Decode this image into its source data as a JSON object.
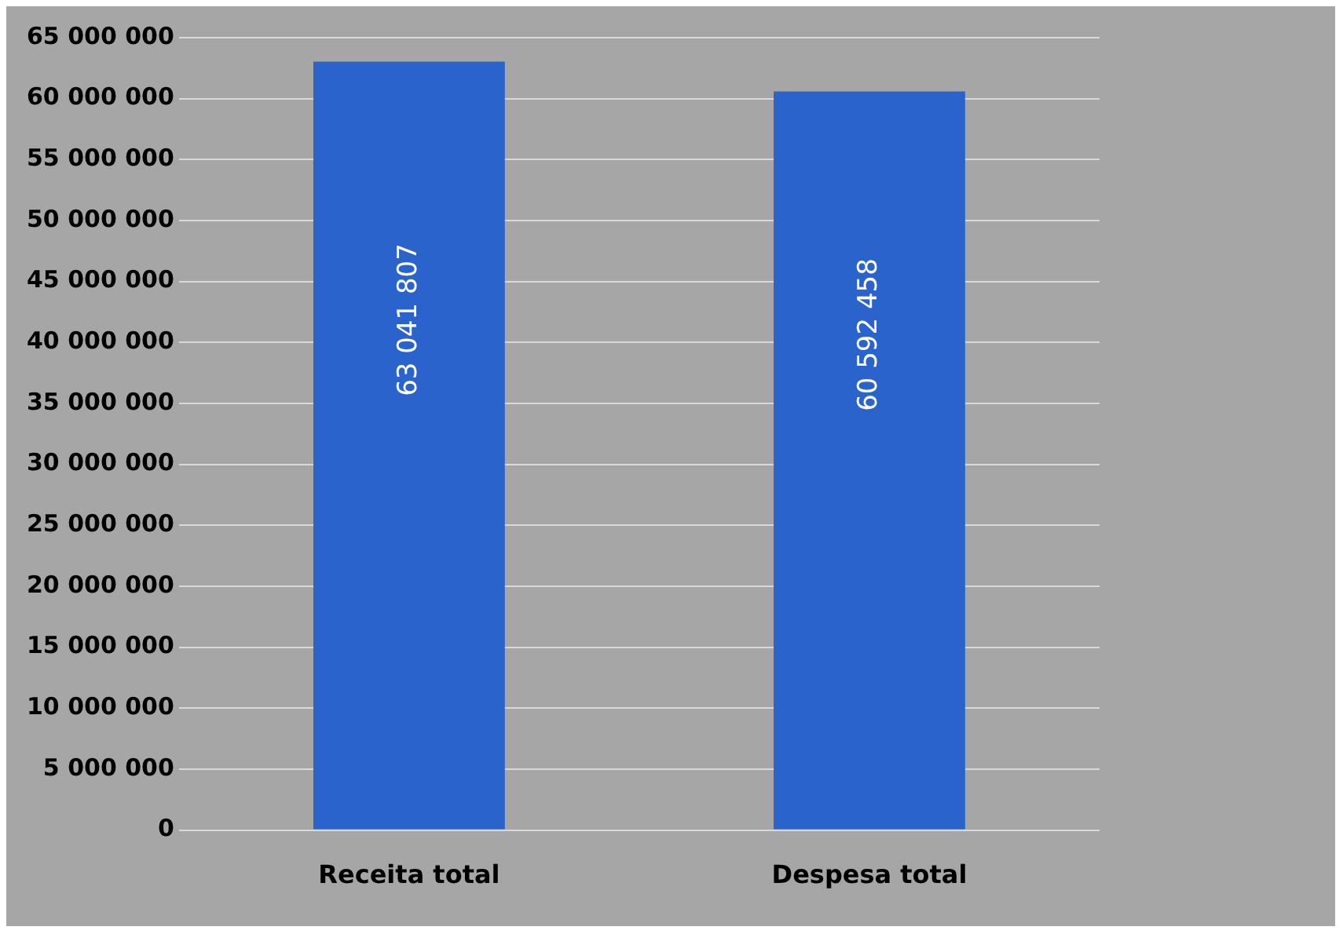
{
  "chart_data": {
    "type": "bar",
    "categories": [
      "Receita total",
      "Despesa total"
    ],
    "values": [
      63041807,
      60592458
    ],
    "color": "#2a63cc",
    "value_labels": [
      "63 041 807",
      "60 592 458"
    ],
    "ylim": [
      0,
      65000000
    ],
    "yticks": [
      {
        "value": 0,
        "label": "0"
      },
      {
        "value": 5000000,
        "label": "5 000 000"
      },
      {
        "value": 10000000,
        "label": "10 000 000"
      },
      {
        "value": 15000000,
        "label": "15 000 000"
      },
      {
        "value": 20000000,
        "label": "20 000 000"
      },
      {
        "value": 25000000,
        "label": "25 000 000"
      },
      {
        "value": 30000000,
        "label": "30 000 000"
      },
      {
        "value": 35000000,
        "label": "35 000 000"
      },
      {
        "value": 40000000,
        "label": "40 000 000"
      },
      {
        "value": 45000000,
        "label": "45 000 000"
      },
      {
        "value": 50000000,
        "label": "50 000 000"
      },
      {
        "value": 55000000,
        "label": "55 000 000"
      },
      {
        "value": 60000000,
        "label": "60 000 000"
      },
      {
        "value": 65000000,
        "label": "65 000 000"
      }
    ],
    "grid": "y",
    "legend": false
  }
}
